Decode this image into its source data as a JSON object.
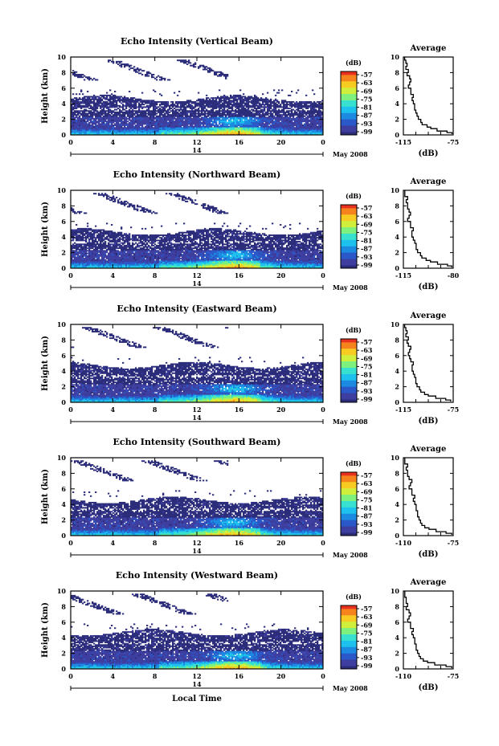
{
  "chart_data": [
    {
      "type": "heatmap",
      "title": "Echo Intensity (Vertical Beam)",
      "ylabel": "Height (km)",
      "ylim": [
        0,
        10
      ],
      "yticks": [
        "0",
        "2",
        "4",
        "6",
        "8",
        "10"
      ],
      "xlim": [
        0,
        24
      ],
      "xticks": [
        "0",
        "4",
        "8",
        "12",
        "16",
        "20",
        "0"
      ],
      "date_label": "14",
      "month_label": "May 2008",
      "colorbar": {
        "title": "(dB)",
        "ticks": [
          "-57",
          "-63",
          "-69",
          "-75",
          "-81",
          "-87",
          "-93",
          "-99"
        ]
      },
      "echo_top_km": 4.7,
      "convective_peak_hour": 15.5,
      "convective_peak_km": 2.6,
      "average_profile": {
        "title": "Average",
        "xlabel": "(dB)",
        "xlim": [
          -115,
          -75
        ],
        "xtick_labels": [
          "-115",
          "-75"
        ],
        "ylim": [
          0,
          10
        ],
        "yticks": [
          "0",
          "2",
          "4",
          "6",
          "8",
          "10"
        ],
        "height_km": [
          0.1,
          0.3,
          0.5,
          0.8,
          1.0,
          1.3,
          1.6,
          2.0,
          2.4,
          2.8,
          3.2,
          3.6,
          4.0,
          4.4,
          4.8,
          5.2,
          5.6,
          6.0,
          6.4,
          6.8,
          7.2,
          7.6,
          8.0,
          8.4,
          8.8,
          9.2,
          9.6,
          10.0
        ],
        "db": [
          -76,
          -80,
          -88,
          -93,
          -96,
          -100,
          -101,
          -103,
          -104,
          -105,
          -106,
          -106,
          -107,
          -108,
          -107,
          -109,
          -109,
          -111,
          -110,
          -109,
          -110,
          -112,
          -111,
          -113,
          -112,
          -113,
          -114,
          -114
        ]
      }
    },
    {
      "type": "heatmap",
      "title": "Echo Intensity (Northward Beam)",
      "ylabel": "Height (km)",
      "ylim": [
        0,
        10
      ],
      "yticks": [
        "0",
        "2",
        "4",
        "6",
        "8",
        "10"
      ],
      "xlim": [
        0,
        24
      ],
      "xticks": [
        "0",
        "4",
        "8",
        "12",
        "16",
        "20",
        "0"
      ],
      "date_label": "14",
      "month_label": "May 2008",
      "colorbar": {
        "title": "(dB)",
        "ticks": [
          "-57",
          "-63",
          "-69",
          "-75",
          "-81",
          "-87",
          "-93",
          "-99"
        ]
      },
      "echo_top_km": 4.7,
      "convective_peak_hour": 15.5,
      "convective_peak_km": 2.4,
      "average_profile": {
        "title": "Average",
        "xlabel": "(dB)",
        "xlim": [
          -115,
          -80
        ],
        "xtick_labels": [
          "-115",
          "-80"
        ],
        "ylim": [
          0,
          10
        ],
        "yticks": [
          "0",
          "2",
          "4",
          "6",
          "8",
          "10"
        ],
        "height_km": [
          0.1,
          0.3,
          0.5,
          0.8,
          1.0,
          1.3,
          1.6,
          2.0,
          2.4,
          2.8,
          3.2,
          3.6,
          4.0,
          4.4,
          4.8,
          5.2,
          5.6,
          6.0,
          6.4,
          6.8,
          7.2,
          7.6,
          8.0,
          8.4,
          8.8,
          9.2,
          9.6,
          10.0
        ],
        "db": [
          -81,
          -84,
          -91,
          -96,
          -99,
          -102,
          -103,
          -105,
          -106,
          -106,
          -107,
          -108,
          -109,
          -109,
          -108,
          -110,
          -110,
          -112,
          -111,
          -110,
          -111,
          -112,
          -112,
          -113,
          -112,
          -114,
          -114,
          -114
        ]
      }
    },
    {
      "type": "heatmap",
      "title": "Echo Intensity (Eastward Beam)",
      "ylabel": "Height (km)",
      "ylim": [
        0,
        10
      ],
      "yticks": [
        "0",
        "2",
        "4",
        "6",
        "8",
        "10"
      ],
      "xlim": [
        0,
        24
      ],
      "xticks": [
        "0",
        "4",
        "8",
        "12",
        "16",
        "20",
        "0"
      ],
      "date_label": "14",
      "month_label": "May 2008",
      "colorbar": {
        "title": "(dB)",
        "ticks": [
          "-57",
          "-63",
          "-69",
          "-75",
          "-81",
          "-87",
          "-93",
          "-99"
        ]
      },
      "echo_top_km": 4.8,
      "convective_peak_hour": 15.5,
      "convective_peak_km": 2.5,
      "average_profile": {
        "title": "Average",
        "xlabel": "(dB)",
        "xlim": [
          -115,
          -75
        ],
        "xtick_labels": [
          "-115",
          "-75"
        ],
        "ylim": [
          0,
          10
        ],
        "yticks": [
          "0",
          "2",
          "4",
          "6",
          "8",
          "10"
        ],
        "height_km": [
          0.1,
          0.3,
          0.5,
          0.8,
          1.0,
          1.3,
          1.6,
          2.0,
          2.4,
          2.8,
          3.2,
          3.6,
          4.0,
          4.4,
          4.8,
          5.2,
          5.6,
          6.0,
          6.4,
          6.8,
          7.2,
          7.6,
          8.0,
          8.4,
          8.8,
          9.2,
          9.6,
          10.0
        ],
        "db": [
          -77,
          -81,
          -89,
          -95,
          -98,
          -101,
          -102,
          -104,
          -105,
          -105,
          -106,
          -107,
          -108,
          -108,
          -107,
          -109,
          -110,
          -111,
          -110,
          -109,
          -111,
          -112,
          -111,
          -113,
          -112,
          -113,
          -114,
          -114
        ]
      }
    },
    {
      "type": "heatmap",
      "title": "Echo Intensity (Southward Beam)",
      "ylabel": "Height (km)",
      "ylim": [
        0,
        10
      ],
      "yticks": [
        "0",
        "2",
        "4",
        "6",
        "8",
        "10"
      ],
      "xlim": [
        0,
        24
      ],
      "xticks": [
        "0",
        "4",
        "8",
        "12",
        "16",
        "20",
        "0"
      ],
      "date_label": "14",
      "month_label": "May 2008",
      "colorbar": {
        "title": "(dB)",
        "ticks": [
          "-57",
          "-63",
          "-69",
          "-75",
          "-81",
          "-87",
          "-93",
          "-99"
        ]
      },
      "echo_top_km": 4.6,
      "convective_peak_hour": 15.3,
      "convective_peak_km": 2.4,
      "average_profile": {
        "title": "Average",
        "xlabel": "(dB)",
        "xlim": [
          -110,
          -75
        ],
        "xtick_labels": [
          "-110",
          "-75"
        ],
        "ylim": [
          0,
          10
        ],
        "yticks": [
          "0",
          "2",
          "4",
          "6",
          "8",
          "10"
        ],
        "height_km": [
          0.1,
          0.3,
          0.5,
          0.8,
          1.0,
          1.3,
          1.6,
          2.0,
          2.4,
          2.8,
          3.2,
          3.6,
          4.0,
          4.4,
          4.8,
          5.2,
          5.6,
          6.0,
          6.4,
          6.8,
          7.2,
          7.6,
          8.0,
          8.4,
          8.8,
          9.2,
          9.6,
          10.0
        ],
        "db": [
          -76,
          -80,
          -87,
          -92,
          -95,
          -97,
          -98,
          -99,
          -100,
          -100,
          -101,
          -101,
          -102,
          -103,
          -102,
          -104,
          -104,
          -106,
          -105,
          -104,
          -106,
          -107,
          -107,
          -108,
          -107,
          -109,
          -109,
          -109
        ]
      }
    },
    {
      "type": "heatmap",
      "title": "Echo Intensity (Westward Beam)",
      "ylabel": "Height (km)",
      "xlabel": "Local Time",
      "ylim": [
        0,
        10
      ],
      "yticks": [
        "0",
        "2",
        "4",
        "6",
        "8",
        "10"
      ],
      "xlim": [
        0,
        24
      ],
      "xticks": [
        "0",
        "4",
        "8",
        "12",
        "16",
        "20",
        "0"
      ],
      "date_label": "14",
      "month_label": "May 2008",
      "colorbar": {
        "title": "(dB)",
        "ticks": [
          "-57",
          "-63",
          "-69",
          "-75",
          "-81",
          "-87",
          "-93",
          "-99"
        ]
      },
      "echo_top_km": 4.7,
      "convective_peak_hour": 15.5,
      "convective_peak_km": 2.5,
      "average_profile": {
        "title": "Average",
        "xlabel": "(dB)",
        "xlim": [
          -110,
          -75
        ],
        "xtick_labels": [
          "-110",
          "-75"
        ],
        "ylim": [
          0,
          10
        ],
        "yticks": [
          "0",
          "2",
          "4",
          "6",
          "8",
          "10"
        ],
        "height_km": [
          0.1,
          0.3,
          0.5,
          0.8,
          1.0,
          1.3,
          1.6,
          2.0,
          2.4,
          2.8,
          3.2,
          3.6,
          4.0,
          4.4,
          4.8,
          5.2,
          5.6,
          6.0,
          6.4,
          6.8,
          7.2,
          7.6,
          8.0,
          8.4,
          8.8,
          9.2,
          9.6,
          10.0
        ],
        "db": [
          -76,
          -80,
          -88,
          -93,
          -96,
          -98,
          -99,
          -100,
          -101,
          -101,
          -102,
          -102,
          -103,
          -104,
          -103,
          -105,
          -105,
          -107,
          -106,
          -105,
          -106,
          -108,
          -107,
          -108,
          -108,
          -109,
          -109,
          -109
        ]
      }
    }
  ],
  "colors": {
    "colormap": [
      "#2b2c7a",
      "#3e3ea0",
      "#2a58c8",
      "#1c8ae0",
      "#1ec0ee",
      "#38e0cf",
      "#7ef07e",
      "#d0ee3c",
      "#f7cb22",
      "#f6831d",
      "#e8311f"
    ],
    "axis": "#000000",
    "background": "#ffffff"
  }
}
